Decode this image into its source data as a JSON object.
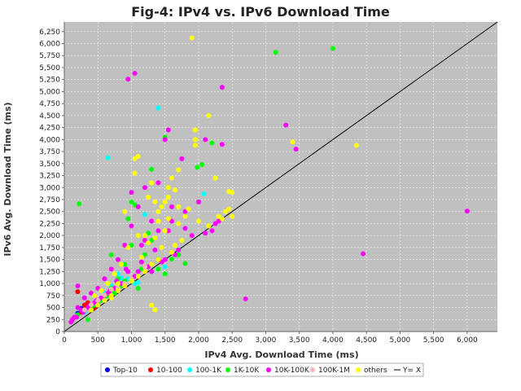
{
  "chart_data": {
    "type": "scatter",
    "title": "Fig-4: IPv4 vs. IPv6 Download Time",
    "xlabel": "IPv4 Avg. Download Time (ms)",
    "ylabel": "IPv6 Avg. Download Time (ms)",
    "xlim": [
      0,
      6450
    ],
    "ylim": [
      0,
      6450
    ],
    "xticks": [
      "0",
      "500",
      "1,000",
      "1,500",
      "2,000",
      "2,500",
      "3,000",
      "3,500",
      "4,000",
      "4,500",
      "5,000",
      "5,500",
      "6,000"
    ],
    "yticks": [
      "0",
      "250",
      "500",
      "750",
      "1,000",
      "1,250",
      "1,500",
      "1,750",
      "2,000",
      "2,250",
      "2,500",
      "2,750",
      "3,000",
      "3,250",
      "3,500",
      "3,750",
      "4,000",
      "4,250",
      "4,500",
      "4,750",
      "5,000",
      "5,250",
      "5,500",
      "5,750",
      "6,000",
      "6,250"
    ],
    "xtick_values": [
      0,
      500,
      1000,
      1500,
      2000,
      2500,
      3000,
      3500,
      4000,
      4500,
      5000,
      5500,
      6000
    ],
    "ytick_values": [
      0,
      250,
      500,
      750,
      1000,
      1250,
      1500,
      1750,
      2000,
      2250,
      2500,
      2750,
      3000,
      3250,
      3500,
      3750,
      4000,
      4250,
      4500,
      4750,
      5000,
      5250,
      5500,
      5750,
      6000,
      6250
    ],
    "grid": true,
    "plot_background": "#c0c0c0",
    "legend_position": "bottom",
    "series": [
      {
        "name": "Top-10",
        "color": "#0000ff",
        "points": [
          [
            250,
            480
          ],
          [
            300,
            420
          ],
          [
            350,
            500
          ],
          [
            200,
            380
          ]
        ]
      },
      {
        "name": "10-100",
        "color": "#ff0000",
        "points": [
          [
            200,
            830
          ],
          [
            300,
            550
          ],
          [
            450,
            500
          ],
          [
            350,
            600
          ],
          [
            400,
            450
          ],
          [
            250,
            400
          ]
        ]
      },
      {
        "name": "100-1K",
        "color": "#00ffff",
        "points": [
          [
            650,
            3620
          ],
          [
            1400,
            4660
          ],
          [
            2080,
            2870
          ],
          [
            1200,
            2440
          ],
          [
            850,
            1120
          ],
          [
            1100,
            1020
          ],
          [
            950,
            1100
          ],
          [
            700,
            950
          ],
          [
            500,
            600
          ],
          [
            1050,
            1000
          ],
          [
            400,
            550
          ],
          [
            1500,
            1350
          ],
          [
            600,
            800
          ],
          [
            800,
            1200
          ],
          [
            300,
            400
          ]
        ]
      },
      {
        "name": "1K-10K",
        "color": "#00ff00",
        "points": [
          [
            220,
            2660
          ],
          [
            3150,
            5820
          ],
          [
            4000,
            5900
          ],
          [
            2200,
            3930
          ],
          [
            2050,
            3480
          ],
          [
            1500,
            4050
          ],
          [
            1980,
            3420
          ],
          [
            1300,
            3380
          ],
          [
            1000,
            2700
          ],
          [
            1050,
            2640
          ],
          [
            1800,
            1420
          ],
          [
            1600,
            1510
          ],
          [
            1150,
            1300
          ],
          [
            1400,
            1500
          ],
          [
            900,
            1050
          ],
          [
            800,
            1100
          ],
          [
            700,
            900
          ],
          [
            600,
            700
          ],
          [
            500,
            600
          ],
          [
            400,
            500
          ],
          [
            1300,
            1900
          ],
          [
            950,
            2350
          ],
          [
            1000,
            1800
          ],
          [
            1200,
            1600
          ],
          [
            850,
            950
          ],
          [
            750,
            800
          ],
          [
            650,
            750
          ],
          [
            550,
            650
          ],
          [
            450,
            550
          ],
          [
            1100,
            900
          ],
          [
            1400,
            1300
          ],
          [
            900,
            1400
          ],
          [
            1250,
            2050
          ],
          [
            300,
            450
          ],
          [
            200,
            350
          ],
          [
            350,
            250
          ],
          [
            1700,
            1600
          ],
          [
            2000,
            2700
          ],
          [
            1500,
            1200
          ],
          [
            700,
            1600
          ]
        ]
      },
      {
        "name": "10K-100K",
        "color": "#ff00ff",
        "points": [
          [
            950,
            5260
          ],
          [
            1050,
            5380
          ],
          [
            2350,
            5090
          ],
          [
            1550,
            4200
          ],
          [
            1500,
            4000
          ],
          [
            2350,
            3900
          ],
          [
            3300,
            4300
          ],
          [
            3450,
            3800
          ],
          [
            6000,
            2510
          ],
          [
            4450,
            1620
          ],
          [
            2700,
            680
          ],
          [
            1750,
            3600
          ],
          [
            2100,
            4000
          ],
          [
            1400,
            3100
          ],
          [
            1200,
            3000
          ],
          [
            1000,
            2900
          ],
          [
            1100,
            2600
          ],
          [
            1300,
            2300
          ],
          [
            1550,
            2100
          ],
          [
            1800,
            2500
          ],
          [
            2100,
            2050
          ],
          [
            2200,
            2100
          ],
          [
            2300,
            2300
          ],
          [
            1650,
            1600
          ],
          [
            1350,
            1700
          ],
          [
            1150,
            1450
          ],
          [
            900,
            1800
          ],
          [
            800,
            1500
          ],
          [
            700,
            1300
          ],
          [
            600,
            1100
          ],
          [
            500,
            900
          ],
          [
            400,
            800
          ],
          [
            300,
            700
          ],
          [
            200,
            500
          ],
          [
            150,
            300
          ],
          [
            100,
            200
          ],
          [
            950,
            1250
          ],
          [
            1050,
            1150
          ],
          [
            1250,
            1350
          ],
          [
            1500,
            1500
          ],
          [
            1700,
            1700
          ],
          [
            850,
            1000
          ],
          [
            750,
            900
          ],
          [
            650,
            800
          ],
          [
            550,
            700
          ],
          [
            450,
            600
          ],
          [
            350,
            500
          ],
          [
            250,
            450
          ],
          [
            200,
            950
          ],
          [
            1200,
            1900
          ],
          [
            1000,
            2200
          ],
          [
            1600,
            2300
          ],
          [
            2000,
            2700
          ],
          [
            1900,
            2000
          ],
          [
            1450,
            1450
          ],
          [
            1150,
            1800
          ],
          [
            1300,
            1250
          ],
          [
            1100,
            1250
          ],
          [
            920,
            1300
          ],
          [
            780,
            1050
          ],
          [
            680,
            850
          ],
          [
            580,
            700
          ],
          [
            480,
            650
          ],
          [
            380,
            550
          ],
          [
            280,
            400
          ],
          [
            180,
            300
          ],
          [
            120,
            250
          ],
          [
            1400,
            2100
          ],
          [
            1600,
            2600
          ],
          [
            2250,
            2250
          ],
          [
            1800,
            2150
          ]
        ]
      },
      {
        "name": "100K-1M",
        "color": "#ffb6b6",
        "points": [
          [
            600,
            760
          ],
          [
            700,
            880
          ],
          [
            800,
            900
          ],
          [
            500,
            650
          ],
          [
            400,
            560
          ],
          [
            900,
            1000
          ],
          [
            1000,
            1100
          ],
          [
            300,
            450
          ],
          [
            1200,
            1350
          ]
        ]
      },
      {
        "name": "others",
        "color": "#ffff00",
        "points": [
          [
            1900,
            6120
          ],
          [
            3400,
            3950
          ],
          [
            4350,
            3880
          ],
          [
            1950,
            4200
          ],
          [
            2150,
            4500
          ],
          [
            1950,
            4000
          ],
          [
            1950,
            3880
          ],
          [
            1700,
            3370
          ],
          [
            1600,
            3200
          ],
          [
            1550,
            3000
          ],
          [
            2250,
            3200
          ],
          [
            2450,
            2920
          ],
          [
            2500,
            2900
          ],
          [
            1700,
            2600
          ],
          [
            1500,
            2700
          ],
          [
            1400,
            2500
          ],
          [
            1550,
            2350
          ],
          [
            1700,
            2250
          ],
          [
            1800,
            2400
          ],
          [
            2350,
            2350
          ],
          [
            2450,
            2550
          ],
          [
            2500,
            2400
          ],
          [
            1600,
            1650
          ],
          [
            1400,
            1500
          ],
          [
            1300,
            1400
          ],
          [
            1200,
            1250
          ],
          [
            1100,
            1150
          ],
          [
            1000,
            1050
          ],
          [
            900,
            950
          ],
          [
            800,
            850
          ],
          [
            700,
            750
          ],
          [
            600,
            650
          ],
          [
            500,
            550
          ],
          [
            400,
            450
          ],
          [
            1050,
            3300
          ],
          [
            1050,
            3600
          ],
          [
            1100,
            3650
          ],
          [
            1300,
            3100
          ],
          [
            1250,
            2800
          ],
          [
            1350,
            2700
          ],
          [
            1450,
            2600
          ],
          [
            1550,
            2800
          ],
          [
            1650,
            2950
          ],
          [
            1850,
            2550
          ],
          [
            2000,
            2300
          ],
          [
            2150,
            2200
          ],
          [
            1750,
            1900
          ],
          [
            1650,
            1800
          ],
          [
            1450,
            1750
          ],
          [
            1350,
            1950
          ],
          [
            1250,
            1850
          ],
          [
            1150,
            1550
          ],
          [
            950,
            1750
          ],
          [
            850,
            1400
          ],
          [
            750,
            1200
          ],
          [
            650,
            1000
          ],
          [
            550,
            850
          ],
          [
            450,
            750
          ],
          [
            1500,
            2100
          ],
          [
            1300,
            550
          ],
          [
            1350,
            450
          ],
          [
            1400,
            2300
          ],
          [
            1200,
            2000
          ],
          [
            900,
            2500
          ],
          [
            1100,
            2000
          ],
          [
            2400,
            2500
          ],
          [
            2300,
            2400
          ],
          [
            700,
            700
          ],
          [
            800,
            1000
          ]
        ]
      }
    ],
    "reference_line": {
      "name": "Y= X",
      "color": "#000000",
      "from": [
        0,
        0
      ],
      "to": [
        6450,
        6450
      ]
    }
  }
}
